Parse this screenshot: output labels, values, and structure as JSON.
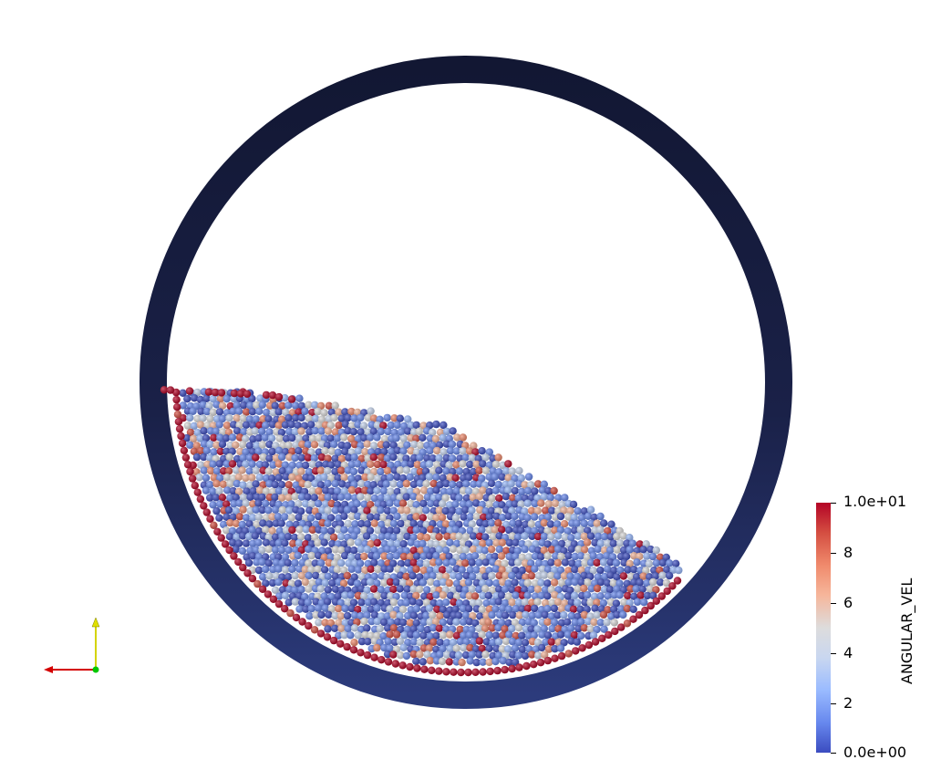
{
  "render_view": {
    "colorbar": {
      "title": "ANGULAR_VEL",
      "max_label": "1.0e+01",
      "min_label": "0.0e+00",
      "tick_labels": [
        "8",
        "6",
        "4",
        "2"
      ],
      "range": [
        0,
        10
      ],
      "colormap_colors": [
        "#3b4cc0",
        "#6788ee",
        "#9abbff",
        "#c9d7f0",
        "#dddcdc",
        "#f6b69b",
        "#f08a6c",
        "#d44e41",
        "#b40426"
      ]
    },
    "drum": {
      "ring_color_outer": "#141a3a",
      "ring_color_inner": "#2b3a7a"
    },
    "axes_triad": {
      "x_color": "#d40000",
      "y_color": "#d4d400",
      "z_color": "#00c800"
    }
  }
}
